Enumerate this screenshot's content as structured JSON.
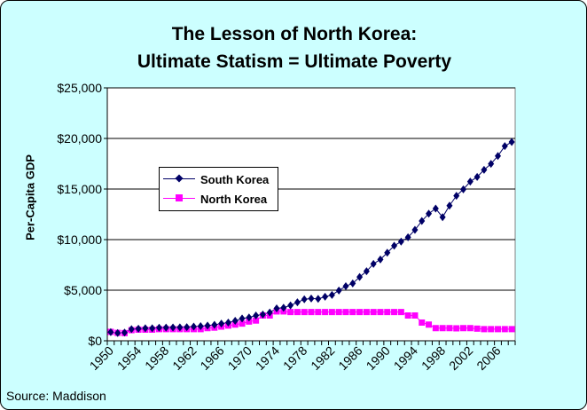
{
  "chart_data": {
    "type": "line",
    "title": "The Lesson of North Korea:",
    "subtitle": "Ultimate Statism = Ultimate Poverty",
    "xlabel": "",
    "ylabel": "Per-Capita GDP",
    "source": "Source: Maddison",
    "ylim": [
      0,
      25000
    ],
    "yticks": [
      "$0",
      "$5,000",
      "$10,000",
      "$15,000",
      "$20,000",
      "$25,000"
    ],
    "ytick_values": [
      0,
      5000,
      10000,
      15000,
      20000,
      25000
    ],
    "xtick_labels": [
      "1950",
      "1954",
      "1958",
      "1962",
      "1966",
      "1970",
      "1974",
      "1978",
      "1982",
      "1986",
      "1990",
      "1994",
      "1998",
      "2002",
      "2006"
    ],
    "x": [
      1950,
      1951,
      1952,
      1953,
      1954,
      1955,
      1956,
      1957,
      1958,
      1959,
      1960,
      1961,
      1962,
      1963,
      1964,
      1965,
      1966,
      1967,
      1968,
      1969,
      1970,
      1971,
      1972,
      1973,
      1974,
      1975,
      1976,
      1977,
      1978,
      1979,
      1980,
      1981,
      1982,
      1983,
      1984,
      1985,
      1986,
      1987,
      1988,
      1989,
      1990,
      1991,
      1992,
      1993,
      1994,
      1995,
      1996,
      1997,
      1998,
      1999,
      2000,
      2001,
      2002,
      2003,
      2004,
      2005,
      2006,
      2007,
      2008
    ],
    "grid": true,
    "legend_position": "upper-left",
    "series": [
      {
        "name": "South Korea",
        "color": "#000066",
        "marker": "diamond",
        "values": [
          854,
          770,
          810,
          1150,
          1200,
          1240,
          1240,
          1290,
          1310,
          1320,
          1330,
          1350,
          1400,
          1450,
          1500,
          1580,
          1700,
          1800,
          1970,
          2200,
          2300,
          2500,
          2600,
          2800,
          3200,
          3270,
          3500,
          3800,
          4100,
          4180,
          4150,
          4350,
          4530,
          4970,
          5400,
          5670,
          6300,
          6870,
          7600,
          8040,
          8710,
          9400,
          9800,
          10230,
          10960,
          11840,
          12570,
          13070,
          12220,
          13360,
          14330,
          14970,
          15730,
          16200,
          16900,
          17490,
          18270,
          19240,
          19650
        ]
      },
      {
        "name": "North Korea",
        "color": "#ff00ff",
        "marker": "square",
        "values": [
          880,
          780,
          760,
          1050,
          1100,
          1100,
          1100,
          1150,
          1150,
          1150,
          1150,
          1150,
          1150,
          1150,
          1250,
          1300,
          1400,
          1500,
          1600,
          1700,
          1900,
          2000,
          2500,
          2500,
          2900,
          2900,
          2840,
          2840,
          2840,
          2840,
          2840,
          2840,
          2840,
          2840,
          2840,
          2840,
          2840,
          2840,
          2840,
          2840,
          2840,
          2840,
          2840,
          2500,
          2500,
          1800,
          1600,
          1250,
          1250,
          1250,
          1230,
          1250,
          1250,
          1200,
          1150,
          1150,
          1150,
          1150,
          1150
        ]
      }
    ]
  }
}
